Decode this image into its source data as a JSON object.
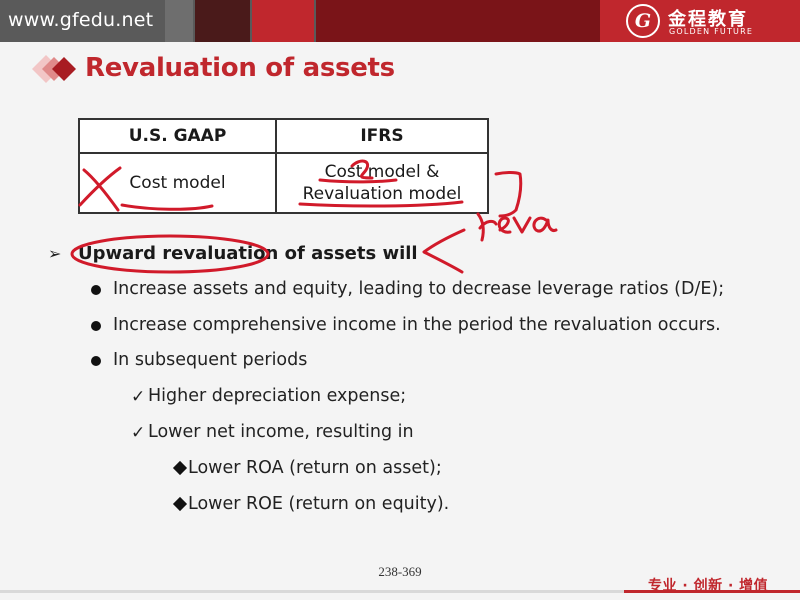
{
  "header": {
    "site_url": "www.gfedu.net",
    "logo": {
      "mark": "G",
      "name_cn": "金程教育",
      "name_en": "GOLDEN FUTURE"
    },
    "colors": {
      "bar": "#5a5a5a",
      "brand_red": "#c0272d",
      "dark_red": "#7a1418"
    }
  },
  "slide": {
    "title": "Revaluation of assets",
    "table": {
      "headers": [
        "U.S. GAAP",
        "IFRS"
      ],
      "gaap_cell": "Cost model",
      "ifrs_cell": [
        "Cost model &",
        "Revaluation model"
      ]
    },
    "main_point": "Upward revaluation of assets will",
    "bullets": [
      "Increase assets and equity, leading to decrease leverage ratios (D/E);",
      "Increase comprehensive income in the period the revaluation occurs.",
      "In subsequent periods"
    ],
    "checks": [
      "Higher depreciation expense;",
      "Lower net income, resulting in"
    ],
    "diamonds": [
      "Lower ROA (return on asset);",
      "Lower ROE (return on equity)."
    ]
  },
  "footer": {
    "page_number": "238-369",
    "slogan": "专业 · 创新 · 增值"
  }
}
